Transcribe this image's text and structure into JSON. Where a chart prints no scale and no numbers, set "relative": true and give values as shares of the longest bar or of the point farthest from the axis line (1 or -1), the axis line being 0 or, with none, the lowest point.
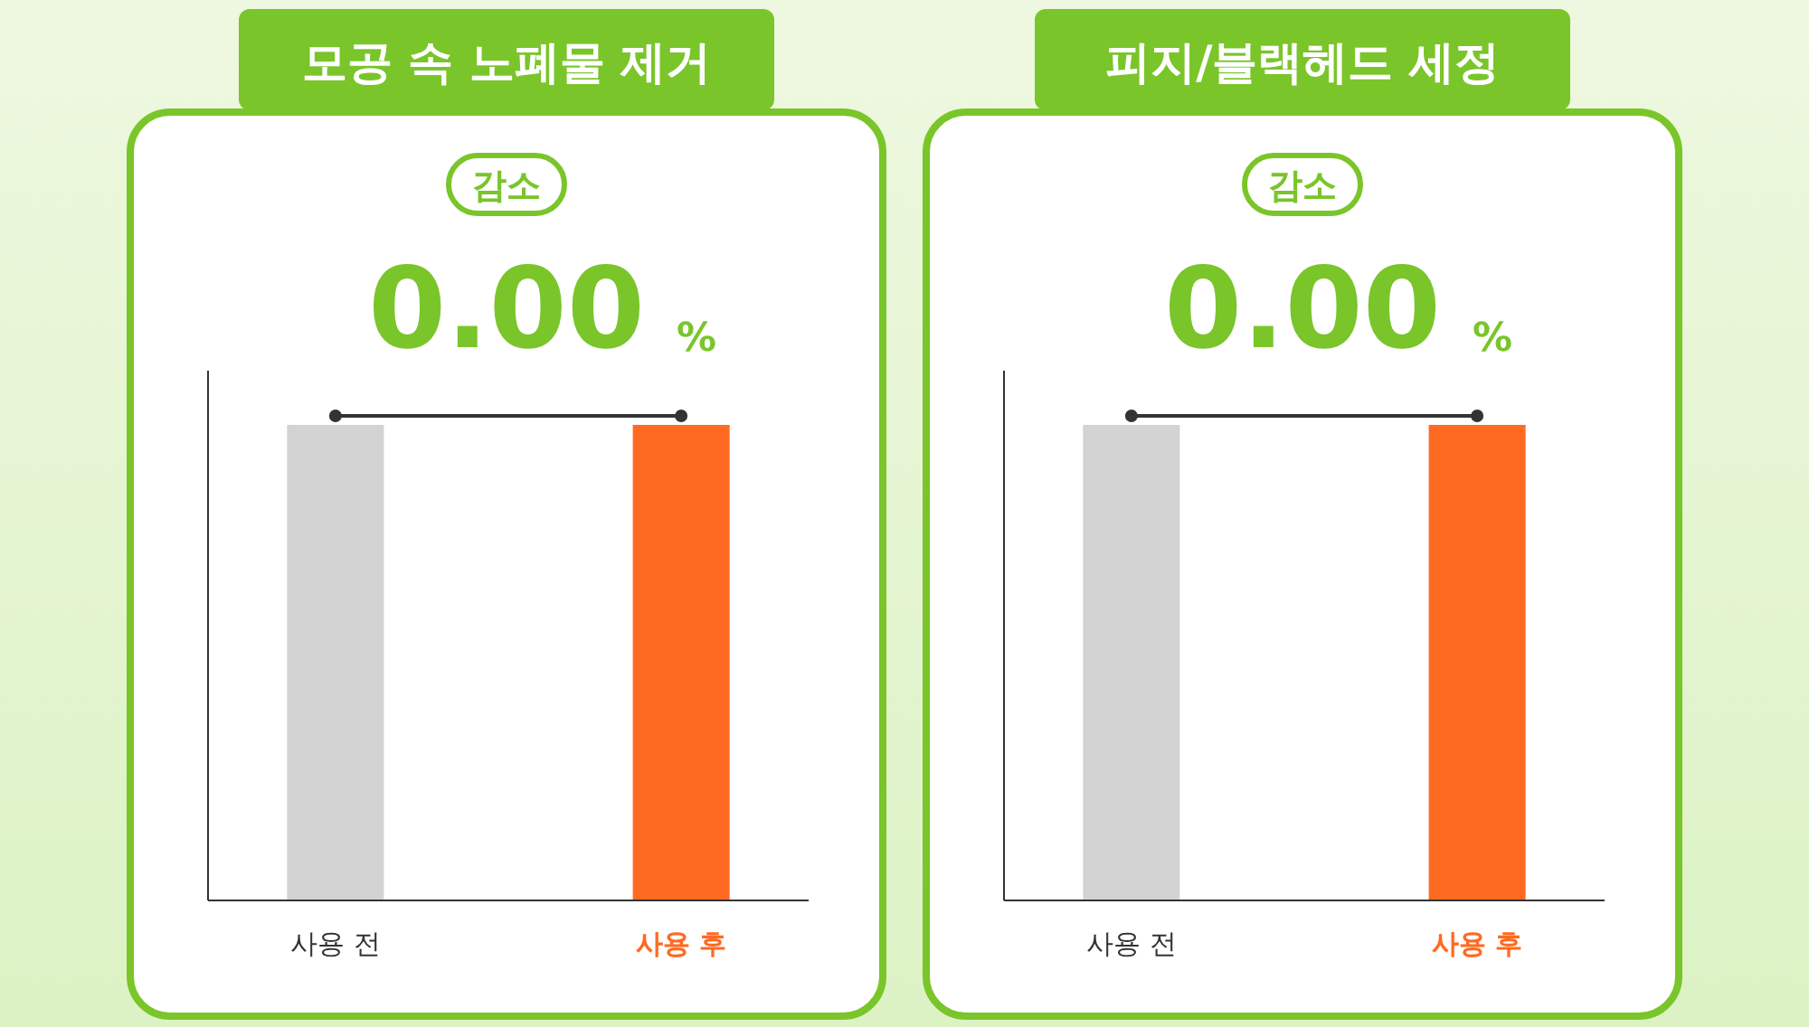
{
  "chart_data": [
    {
      "type": "bar",
      "title": "모공 속 노폐물 제거",
      "annotations": [
        "감소",
        "0.00",
        "%"
      ],
      "categories": [
        "사용 전",
        "사용 후"
      ],
      "relative": true,
      "series": [
        {
          "colors": [
            "#d3d3d3",
            "#ff6a22"
          ],
          "values": [
            1,
            1
          ]
        }
      ]
    },
    {
      "type": "bar",
      "title": "피지/블랙헤드 세정",
      "annotations": [
        "감소",
        "0.00",
        "%"
      ],
      "categories": [
        "사용 전",
        "사용 후"
      ],
      "relative": true,
      "series": [
        {
          "colors": [
            "#d3d3d3",
            "#ff6a22"
          ],
          "values": [
            1,
            1
          ]
        }
      ]
    }
  ]
}
